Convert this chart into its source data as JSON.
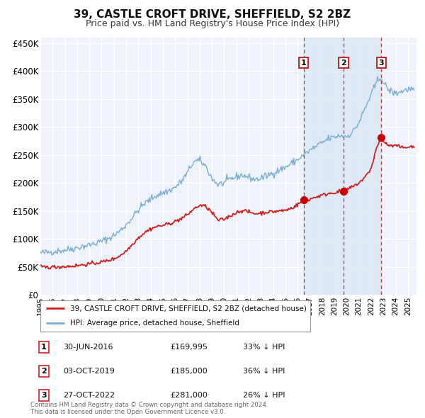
{
  "title": "39, CASTLE CROFT DRIVE, SHEFFIELD, S2 2BZ",
  "subtitle": "Price paid vs. HM Land Registry's House Price Index (HPI)",
  "title_fontsize": 11,
  "subtitle_fontsize": 9,
  "ylim": [
    0,
    460000
  ],
  "yticks": [
    0,
    50000,
    100000,
    150000,
    200000,
    250000,
    300000,
    350000,
    400000,
    450000
  ],
  "ytick_labels": [
    "£0",
    "£50K",
    "£100K",
    "£150K",
    "£200K",
    "£250K",
    "£300K",
    "£350K",
    "£400K",
    "£450K"
  ],
  "xlim_start": 1995.0,
  "xlim_end": 2025.7,
  "xticks": [
    1995,
    1996,
    1997,
    1998,
    1999,
    2000,
    2001,
    2002,
    2003,
    2004,
    2005,
    2006,
    2007,
    2008,
    2009,
    2010,
    2011,
    2012,
    2013,
    2014,
    2015,
    2016,
    2017,
    2018,
    2019,
    2020,
    2021,
    2022,
    2023,
    2024,
    2025
  ],
  "background_color": "#ffffff",
  "plot_bg_color": "#eef2fa",
  "grid_color": "#ffffff",
  "hpi_line_color": "#7aadd4",
  "price_line_color": "#cc2222",
  "sale_dot_color": "#cc0000",
  "vline_color": "#cc3333",
  "highlight_bg_color": "#dce8f5",
  "sale1_x": 2016.49,
  "sale1_y": 169995,
  "sale2_x": 2019.75,
  "sale2_y": 185000,
  "sale3_x": 2022.82,
  "sale3_y": 281000,
  "transaction_label1": "30-JUN-2016",
  "transaction_price1": "£169,995",
  "transaction_pct1": "33% ↓ HPI",
  "transaction_label2": "03-OCT-2019",
  "transaction_price2": "£185,000",
  "transaction_pct2": "36% ↓ HPI",
  "transaction_label3": "27-OCT-2022",
  "transaction_price3": "£281,000",
  "transaction_pct3": "26% ↓ HPI",
  "footer1": "Contains HM Land Registry data © Crown copyright and database right 2024.",
  "footer2": "This data is licensed under the Open Government Licence v3.0.",
  "legend1": "39, CASTLE CROFT DRIVE, SHEFFIELD, S2 2BZ (detached house)",
  "legend2": "HPI: Average price, detached house, Sheffield"
}
